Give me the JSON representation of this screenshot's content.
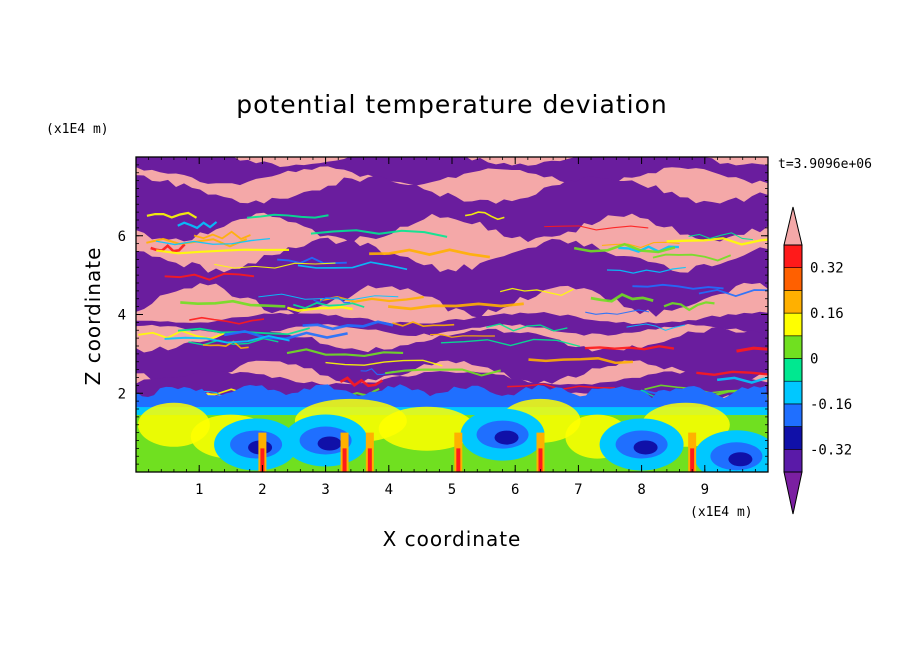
{
  "chart_data": {
    "type": "heatmap",
    "title": "potential temperature deviation",
    "xlabel": "X coordinate",
    "ylabel": "Z coordinate",
    "x_unit": "(x1E4 m)",
    "y_unit": "(x1E4 m)",
    "time_label": "t=3.9096e+06",
    "xlim": [
      0,
      10
    ],
    "ylim": [
      0,
      8
    ],
    "x_ticks": [
      1,
      2,
      3,
      4,
      5,
      6,
      7,
      8,
      9
    ],
    "y_ticks": [
      2,
      4,
      6
    ],
    "colorbar": {
      "extend": "both",
      "levels": [
        -0.4,
        -0.32,
        -0.24,
        -0.16,
        -0.08,
        0,
        0.08,
        0.16,
        0.24,
        0.32,
        0.4
      ],
      "colors": [
        "#7b1fa2",
        "#5a1aa8",
        "#1010a8",
        "#1f6fff",
        "#00c8ff",
        "#00e890",
        "#70e020",
        "#ffff00",
        "#ffb000",
        "#ff6000",
        "#ff1a1a",
        "#f4a8a8"
      ],
      "tick_labels": [
        "0.32",
        "0.16",
        "0",
        "-0.16",
        "-0.32"
      ],
      "tick_values": [
        0.32,
        0.16,
        0,
        -0.16,
        -0.32
      ]
    }
  },
  "colors": {
    "pink": "#f4a8a8",
    "purple": "#6a1d9e"
  }
}
